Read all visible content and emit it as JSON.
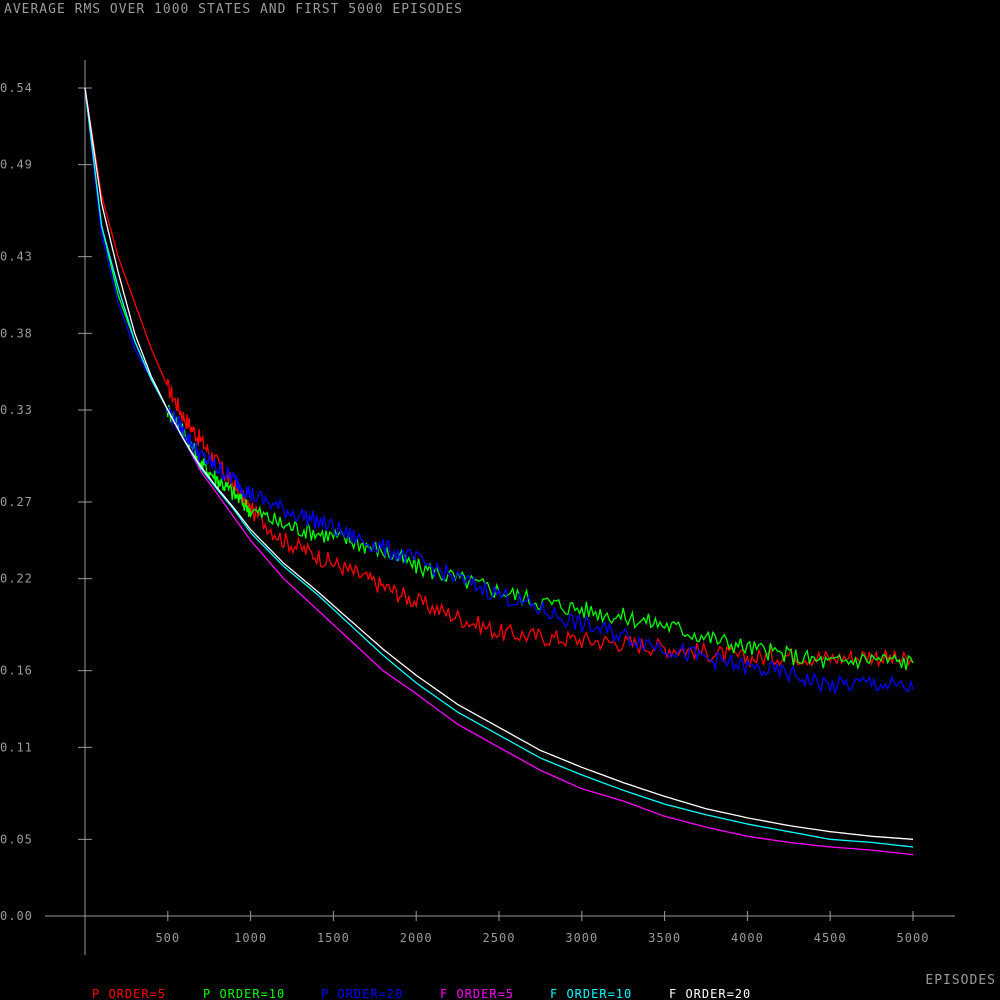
{
  "chart_data": {
    "type": "line",
    "title": "AVERAGE RMS OVER 1000 STATES AND FIRST 5000 EPISODES",
    "xlabel": "EPISODES",
    "ylabel": "",
    "xlim": [
      0,
      5000
    ],
    "ylim": [
      0.0,
      0.54
    ],
    "x_ticks": [
      "500",
      "1000",
      "1500",
      "2000",
      "2500",
      "3000",
      "3500",
      "4000",
      "4500",
      "5000"
    ],
    "y_ticks": [
      "0.00",
      "0.05",
      "0.11",
      "0.16",
      "0.22",
      "0.27",
      "0.33",
      "0.38",
      "0.43",
      "0.49",
      "0.54"
    ],
    "x": [
      0,
      100,
      200,
      300,
      400,
      500,
      600,
      700,
      800,
      900,
      1000,
      1200,
      1400,
      1600,
      1800,
      2000,
      2250,
      2500,
      2750,
      3000,
      3250,
      3500,
      3750,
      4000,
      4250,
      4500,
      4750,
      5000
    ],
    "series": [
      {
        "name": "P ORDER=5",
        "color": "#ff0000",
        "values": [
          0.54,
          0.47,
          0.43,
          0.4,
          0.37,
          0.345,
          0.325,
          0.31,
          0.295,
          0.28,
          0.265,
          0.245,
          0.235,
          0.225,
          0.215,
          0.205,
          0.195,
          0.185,
          0.182,
          0.18,
          0.178,
          0.175,
          0.172,
          0.168,
          0.17,
          0.168,
          0.17,
          0.165
        ]
      },
      {
        "name": "P ORDER=10",
        "color": "#00ff00",
        "values": [
          0.54,
          0.45,
          0.405,
          0.375,
          0.35,
          0.33,
          0.315,
          0.295,
          0.285,
          0.275,
          0.265,
          0.255,
          0.25,
          0.245,
          0.238,
          0.228,
          0.22,
          0.212,
          0.205,
          0.2,
          0.195,
          0.19,
          0.182,
          0.175,
          0.17,
          0.165,
          0.168,
          0.165
        ]
      },
      {
        "name": "P ORDER=20",
        "color": "#0000ff",
        "values": [
          0.54,
          0.445,
          0.4,
          0.37,
          0.35,
          0.33,
          0.315,
          0.3,
          0.292,
          0.285,
          0.275,
          0.265,
          0.258,
          0.248,
          0.24,
          0.232,
          0.22,
          0.21,
          0.2,
          0.19,
          0.183,
          0.175,
          0.168,
          0.162,
          0.158,
          0.15,
          0.152,
          0.148
        ]
      },
      {
        "name": "F ORDER=5",
        "color": "#ff00ff",
        "values": [
          0.54,
          0.45,
          0.41,
          0.375,
          0.35,
          0.33,
          0.31,
          0.29,
          0.275,
          0.26,
          0.245,
          0.22,
          0.2,
          0.18,
          0.16,
          0.145,
          0.125,
          0.11,
          0.095,
          0.083,
          0.075,
          0.065,
          0.058,
          0.052,
          0.048,
          0.045,
          0.043,
          0.04
        ]
      },
      {
        "name": "F ORDER=10",
        "color": "#00ffff",
        "values": [
          0.54,
          0.45,
          0.41,
          0.375,
          0.35,
          0.33,
          0.31,
          0.292,
          0.278,
          0.265,
          0.25,
          0.228,
          0.21,
          0.19,
          0.17,
          0.152,
          0.133,
          0.118,
          0.103,
          0.092,
          0.082,
          0.073,
          0.066,
          0.06,
          0.055,
          0.05,
          0.048,
          0.045
        ]
      },
      {
        "name": "F ORDER=20",
        "color": "#ffffff",
        "values": [
          0.54,
          0.465,
          0.42,
          0.38,
          0.352,
          0.33,
          0.31,
          0.293,
          0.279,
          0.266,
          0.252,
          0.23,
          0.212,
          0.193,
          0.174,
          0.157,
          0.138,
          0.123,
          0.108,
          0.097,
          0.087,
          0.078,
          0.07,
          0.064,
          0.059,
          0.055,
          0.052,
          0.05
        ]
      }
    ],
    "grid": false,
    "legend_position": "bottom"
  }
}
